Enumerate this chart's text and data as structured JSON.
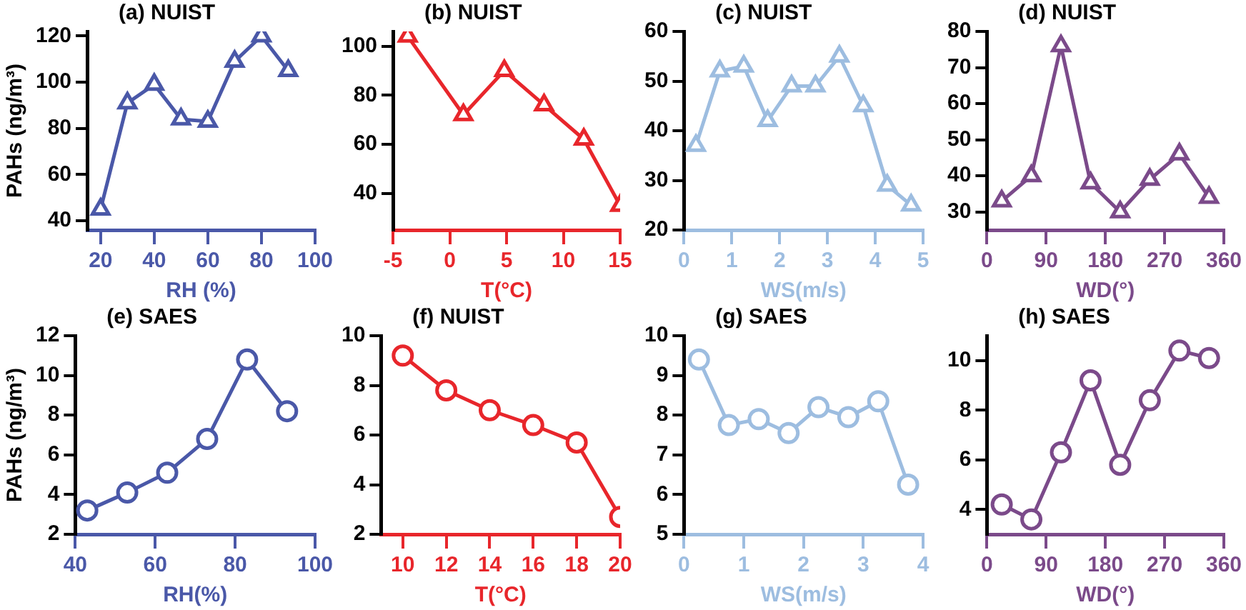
{
  "chart_data": [
    {
      "type": "line",
      "title": "(a) NUIST",
      "xlabel": "RH (%)",
      "ylabel": "PAHs (ng/m³)",
      "x": [
        20,
        30,
        40,
        50,
        60,
        70,
        80,
        90
      ],
      "xlim": [
        15,
        100
      ],
      "xticks": [
        20,
        40,
        60,
        80,
        100
      ],
      "ylim": [
        36,
        122
      ],
      "yticks": [
        40,
        60,
        80,
        100,
        120
      ],
      "marker": "triangle",
      "grid": false,
      "legend": false,
      "series": [
        {
          "color": "#4a58a8",
          "values": [
            45,
            91,
            99,
            84,
            83,
            109,
            120,
            105
          ]
        }
      ]
    },
    {
      "type": "line",
      "title": "(b) NUIST",
      "xlabel": "T(°C)",
      "x": [
        -3.7,
        1.2,
        4.8,
        8.3,
        11.8,
        15
      ],
      "xlim": [
        -5,
        15
      ],
      "xticks": [
        -5,
        0,
        5,
        10,
        15
      ],
      "ylim": [
        25,
        106
      ],
      "yticks": [
        40,
        60,
        80,
        100
      ],
      "marker": "triangle",
      "grid": false,
      "legend": false,
      "series": [
        {
          "color": "#e8262b",
          "values": [
            104,
            72,
            90,
            76,
            62,
            35
          ]
        }
      ]
    },
    {
      "type": "line",
      "title": "(c) NUIST",
      "xlabel": "WS(m/s)",
      "x": [
        0.25,
        0.75,
        1.25,
        1.75,
        2.25,
        2.75,
        3.25,
        3.75,
        4.25,
        4.75
      ],
      "xlim": [
        0,
        5
      ],
      "xticks": [
        0,
        1,
        2,
        3,
        4,
        5
      ],
      "ylim": [
        20,
        60
      ],
      "yticks": [
        20,
        30,
        40,
        50,
        60
      ],
      "marker": "triangle",
      "grid": false,
      "legend": false,
      "series": [
        {
          "color": "#9dbde0",
          "values": [
            37,
            52,
            53,
            42,
            49,
            49,
            55,
            45,
            29,
            25
          ]
        }
      ]
    },
    {
      "type": "line",
      "title": "(d) NUIST",
      "xlabel": "WD(°)",
      "x": [
        22.5,
        67.5,
        112.5,
        157.5,
        202.5,
        247.5,
        292.5,
        337.5
      ],
      "xlim": [
        0,
        360
      ],
      "xticks": [
        0,
        90,
        180,
        270,
        360
      ],
      "ylim": [
        25,
        80
      ],
      "yticks": [
        30,
        40,
        50,
        60,
        70,
        80
      ],
      "marker": "triangle",
      "grid": false,
      "legend": false,
      "series": [
        {
          "color": "#7b4a8a",
          "values": [
            33,
            40,
            76,
            38,
            30,
            39,
            46,
            34
          ]
        }
      ]
    },
    {
      "type": "line",
      "title": "(e) SAES",
      "xlabel": "RH(%)",
      "ylabel": "PAHs (ng/m³)",
      "x": [
        43,
        53,
        63,
        73,
        83,
        93
      ],
      "xlim": [
        40,
        100
      ],
      "xticks": [
        40,
        60,
        80,
        100
      ],
      "ylim": [
        2,
        12
      ],
      "yticks": [
        2,
        4,
        6,
        8,
        10,
        12
      ],
      "marker": "circle",
      "grid": false,
      "legend": false,
      "series": [
        {
          "color": "#4a58a8",
          "values": [
            3.2,
            4.1,
            5.1,
            6.8,
            10.8,
            8.2
          ]
        }
      ]
    },
    {
      "type": "line",
      "title": "(f) NUIST",
      "xlabel": "T(°C)",
      "x": [
        10,
        12,
        14,
        16,
        18,
        20
      ],
      "xlim": [
        9,
        20
      ],
      "xticks": [
        10,
        12,
        14,
        16,
        18,
        20
      ],
      "ylim": [
        2,
        10
      ],
      "yticks": [
        2,
        4,
        6,
        8,
        10
      ],
      "marker": "circle",
      "grid": false,
      "legend": false,
      "series": [
        {
          "color": "#e8262b",
          "values": [
            9.2,
            7.8,
            7.0,
            6.4,
            5.7,
            2.7
          ]
        }
      ]
    },
    {
      "type": "line",
      "title": "(g) SAES",
      "xlabel": "WS(m/s)",
      "x": [
        0.25,
        0.75,
        1.25,
        1.75,
        2.25,
        2.75,
        3.25,
        3.75
      ],
      "xlim": [
        0,
        4
      ],
      "xticks": [
        0,
        1,
        2,
        3,
        4
      ],
      "ylim": [
        5,
        10
      ],
      "yticks": [
        5,
        6,
        7,
        8,
        9,
        10
      ],
      "marker": "circle",
      "grid": false,
      "legend": false,
      "series": [
        {
          "color": "#9dbde0",
          "values": [
            9.4,
            7.75,
            7.9,
            7.55,
            8.2,
            7.95,
            8.35,
            6.25
          ]
        }
      ]
    },
    {
      "type": "line",
      "title": "(h) SAES",
      "xlabel": "WD(°)",
      "x": [
        22.5,
        67.5,
        112.5,
        157.5,
        202.5,
        247.5,
        292.5,
        337.5
      ],
      "xlim": [
        0,
        360
      ],
      "xticks": [
        0,
        90,
        180,
        270,
        360
      ],
      "ylim": [
        3,
        11
      ],
      "yticks": [
        4,
        6,
        8,
        10
      ],
      "marker": "circle",
      "grid": false,
      "legend": false,
      "series": [
        {
          "color": "#7b4a8a",
          "values": [
            4.2,
            3.6,
            6.3,
            9.2,
            5.8,
            8.4,
            10.4,
            10.1
          ]
        }
      ]
    }
  ]
}
